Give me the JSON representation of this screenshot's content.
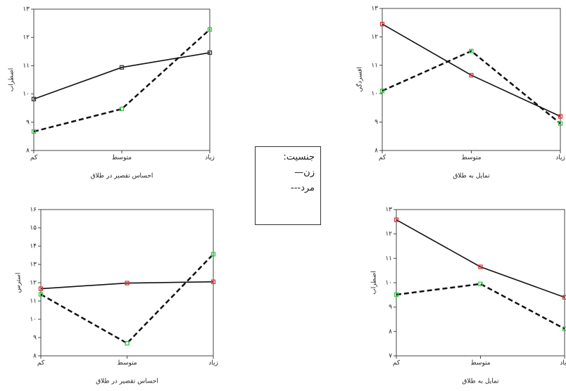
{
  "chart_data": [
    {
      "type": "line",
      "x_label": "احساس تقصیر در طلاق",
      "y_label": "اضطراب",
      "categories": [
        "کم",
        "متوسط",
        "زیاد"
      ],
      "ylim": [
        8,
        13
      ],
      "yticks": [
        {
          "value": 8,
          "label": "۸"
        },
        {
          "value": 9,
          "label": "۹"
        },
        {
          "value": 10,
          "label": "۱۰"
        },
        {
          "value": 11,
          "label": "۱۱"
        },
        {
          "value": 12,
          "label": "۱۲"
        },
        {
          "value": 13,
          "label": "۱۳"
        }
      ],
      "series": [
        {
          "color": "#111",
          "marker_color": "#333",
          "line_style": "solid",
          "values": [
            9.82,
            10.94,
            11.46
          ]
        },
        {
          "color": "#111",
          "marker_color": "#2ecc40",
          "line_style": "dashed",
          "values": [
            8.67,
            9.47,
            12.28
          ]
        }
      ]
    },
    {
      "type": "line",
      "x_label": "تمایل به طلاق",
      "y_label": "افسردگی",
      "categories": [
        "کم",
        "متوسط",
        "زیاد"
      ],
      "ylim": [
        8,
        13
      ],
      "yticks": [
        {
          "value": 8,
          "label": "۸"
        },
        {
          "value": 9,
          "label": "۹"
        },
        {
          "value": 10,
          "label": "۱۰"
        },
        {
          "value": 11,
          "label": "۱۱"
        },
        {
          "value": 12,
          "label": "۱۲"
        },
        {
          "value": 13,
          "label": "۱۳"
        }
      ],
      "series": [
        {
          "color": "#111",
          "marker_color": "#e03030",
          "line_style": "solid",
          "values": [
            12.45,
            10.65,
            9.2
          ]
        },
        {
          "color": "#111",
          "marker_color": "#2ecc40",
          "line_style": "dashed",
          "values": [
            10.1,
            11.5,
            8.95
          ]
        }
      ]
    },
    {
      "type": "line",
      "x_label": "احساس تقصیر در طلاق",
      "y_label": "استرس",
      "categories": [
        "کم",
        "متوسط",
        "زیاد"
      ],
      "ylim": [
        8,
        16
      ],
      "yticks": [
        {
          "value": 8,
          "label": "۸"
        },
        {
          "value": 9,
          "label": "۹"
        },
        {
          "value": 10,
          "label": "۱۰"
        },
        {
          "value": 11,
          "label": "۱۱"
        },
        {
          "value": 12,
          "label": "۱۲"
        },
        {
          "value": 13,
          "label": "۱۳"
        },
        {
          "value": 14,
          "label": "۱۴"
        },
        {
          "value": 15,
          "label": "۱۵"
        },
        {
          "value": 16,
          "label": "۱۶"
        }
      ],
      "series": [
        {
          "color": "#111",
          "marker_color": "#e03030",
          "line_style": "solid",
          "values": [
            11.67,
            11.98,
            12.05
          ]
        },
        {
          "color": "#111",
          "marker_color": "#2ecc40",
          "line_style": "dashed",
          "values": [
            11.36,
            8.69,
            13.56
          ]
        }
      ]
    },
    {
      "type": "line",
      "x_label": "تمایل به طلاق",
      "y_label": "اضطراب",
      "categories": [
        "کم",
        "متوسط",
        "زیاد"
      ],
      "ylim": [
        7,
        13
      ],
      "yticks": [
        {
          "value": 7,
          "label": "۷"
        },
        {
          "value": 8,
          "label": "۸"
        },
        {
          "value": 9,
          "label": "۹"
        },
        {
          "value": 10,
          "label": "۱۰"
        },
        {
          "value": 11,
          "label": "۱۱"
        },
        {
          "value": 12,
          "label": "۱۲"
        },
        {
          "value": 13,
          "label": "۱۳"
        }
      ],
      "series": [
        {
          "color": "#111",
          "marker_color": "#e03030",
          "line_style": "solid",
          "values": [
            12.58,
            10.65,
            9.4
          ]
        },
        {
          "color": "#111",
          "marker_color": "#2ecc40",
          "line_style": "dashed",
          "values": [
            9.51,
            9.95,
            8.11
          ]
        }
      ]
    }
  ],
  "legend": {
    "title": "جنسیت:",
    "items": [
      "زن—",
      "مرد---"
    ]
  }
}
